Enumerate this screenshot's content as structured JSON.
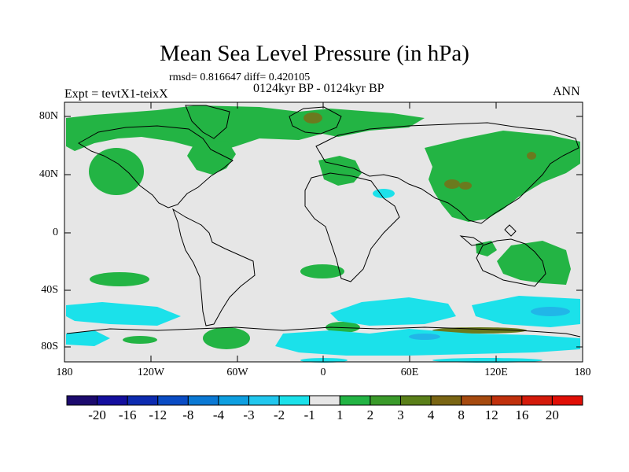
{
  "title": "Mean Sea Level Pressure (in hPa)",
  "stats": "rmsd= 0.816647 diff= 0.420105",
  "period": "0124kyr BP - 0124kyr BP",
  "experiment": "Expt = tevtX1-teixX",
  "season": "ANN",
  "y_ticks": [
    "80N",
    "40N",
    "0",
    "40S",
    "80S"
  ],
  "x_ticks": [
    "180",
    "120W",
    "60W",
    "0",
    "60E",
    "120E",
    "180"
  ],
  "colorbar": {
    "labels": [
      "-20",
      "-16",
      "-12",
      "-8",
      "-4",
      "-3",
      "-2",
      "-1",
      "1",
      "2",
      "3",
      "4",
      "8",
      "12",
      "16",
      "20"
    ],
    "colors": [
      "#1c0a6e",
      "#140f9e",
      "#0d2bb0",
      "#0a4cc4",
      "#0b79d4",
      "#0e9fe0",
      "#21c7ee",
      "#1be1ea",
      "#e6e6e6",
      "#23b444",
      "#3a9a2a",
      "#5a7f19",
      "#7a6513",
      "#a64a0f",
      "#c0300c",
      "#d41a0a",
      "#e00f06"
    ]
  },
  "colors": {
    "background": "#e6e6e6",
    "positive": "#23b444",
    "positive_strong": "#6b7a1e",
    "negative": "#1be1ea",
    "negative_strong": "#21b6e8"
  }
}
